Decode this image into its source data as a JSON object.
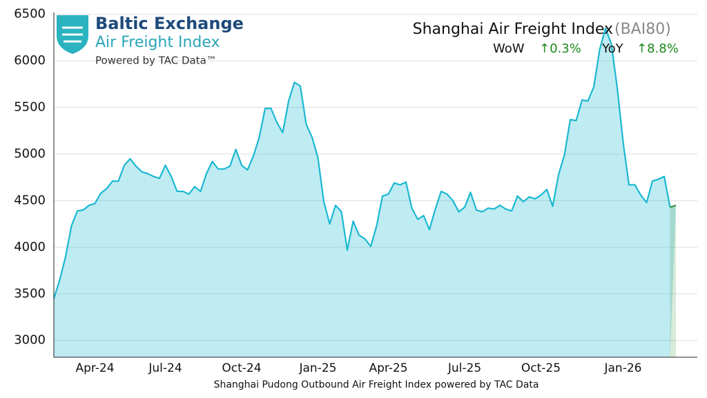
{
  "logo": {
    "name": "Baltic Exchange",
    "product": "Air Freight Index",
    "powered": "Powered by TAC Data™"
  },
  "chart_data": {
    "type": "area",
    "title": "Shanghai Air Freight Index",
    "code": "(BAI80)",
    "wow": {
      "label": "WoW",
      "change": "↑0.3%"
    },
    "yoy": {
      "label": "YoY",
      "change": "↑8.8%"
    },
    "xlabel": "Shanghai Pudong Outbound Air Freight Index powered by TAC Data",
    "categories": [
      null,
      null,
      null,
      null,
      null,
      null,
      null,
      "Apr-24",
      null,
      null,
      null,
      null,
      null,
      null,
      null,
      null,
      null,
      null,
      null,
      "Jul-24",
      null,
      null,
      null,
      null,
      null,
      null,
      null,
      null,
      null,
      null,
      null,
      null,
      "Oct-24",
      null,
      null,
      null,
      null,
      null,
      null,
      null,
      null,
      null,
      null,
      null,
      null,
      "Jan-25",
      null,
      null,
      null,
      null,
      null,
      null,
      null,
      null,
      null,
      null,
      null,
      "Apr-25",
      null,
      null,
      null,
      null,
      null,
      null,
      null,
      null,
      null,
      null,
      null,
      null,
      "Jul-25",
      null,
      null,
      null,
      null,
      null,
      null,
      null,
      null,
      null,
      null,
      null,
      null,
      "Oct-25",
      null,
      null,
      null,
      null,
      null,
      null,
      null,
      null,
      null,
      null,
      null,
      null,
      null,
      "Jan-26",
      null,
      null,
      null,
      null,
      null,
      null,
      null,
      null,
      null
    ],
    "series": [
      {
        "name": "BAI80",
        "color": "#1ab8d1",
        "highlight_color": "#2e8b2e",
        "values": [
          3450,
          3650,
          3900,
          4230,
          4390,
          4400,
          4450,
          4470,
          4580,
          4630,
          4710,
          4710,
          4880,
          4950,
          4870,
          4810,
          4790,
          4760,
          4740,
          4880,
          4760,
          4600,
          4600,
          4570,
          4650,
          4600,
          4790,
          4920,
          4840,
          4840,
          4870,
          5050,
          4880,
          4830,
          4980,
          5180,
          5490,
          5490,
          5340,
          5230,
          5570,
          5770,
          5730,
          5320,
          5180,
          4960,
          4490,
          4250,
          4450,
          4380,
          3970,
          4280,
          4130,
          4090,
          4010,
          4230,
          4550,
          4570,
          4690,
          4670,
          4700,
          4420,
          4300,
          4340,
          4190,
          4410,
          4600,
          4570,
          4500,
          4380,
          4430,
          4590,
          4400,
          4380,
          4420,
          4410,
          4450,
          4410,
          4390,
          4550,
          4490,
          4540,
          4520,
          4560,
          4620,
          4440,
          4780,
          4990,
          5370,
          5360,
          5580,
          5570,
          5720,
          6120,
          6350,
          6180,
          5710,
          5130,
          4670,
          4670,
          4560,
          4480,
          4710,
          4730,
          4760,
          4430,
          4450
        ]
      }
    ],
    "ylim": [
      2820,
      6520
    ],
    "yticks": [
      3000,
      3500,
      4000,
      4500,
      5000,
      5500,
      6000,
      6500
    ],
    "grid": true
  }
}
